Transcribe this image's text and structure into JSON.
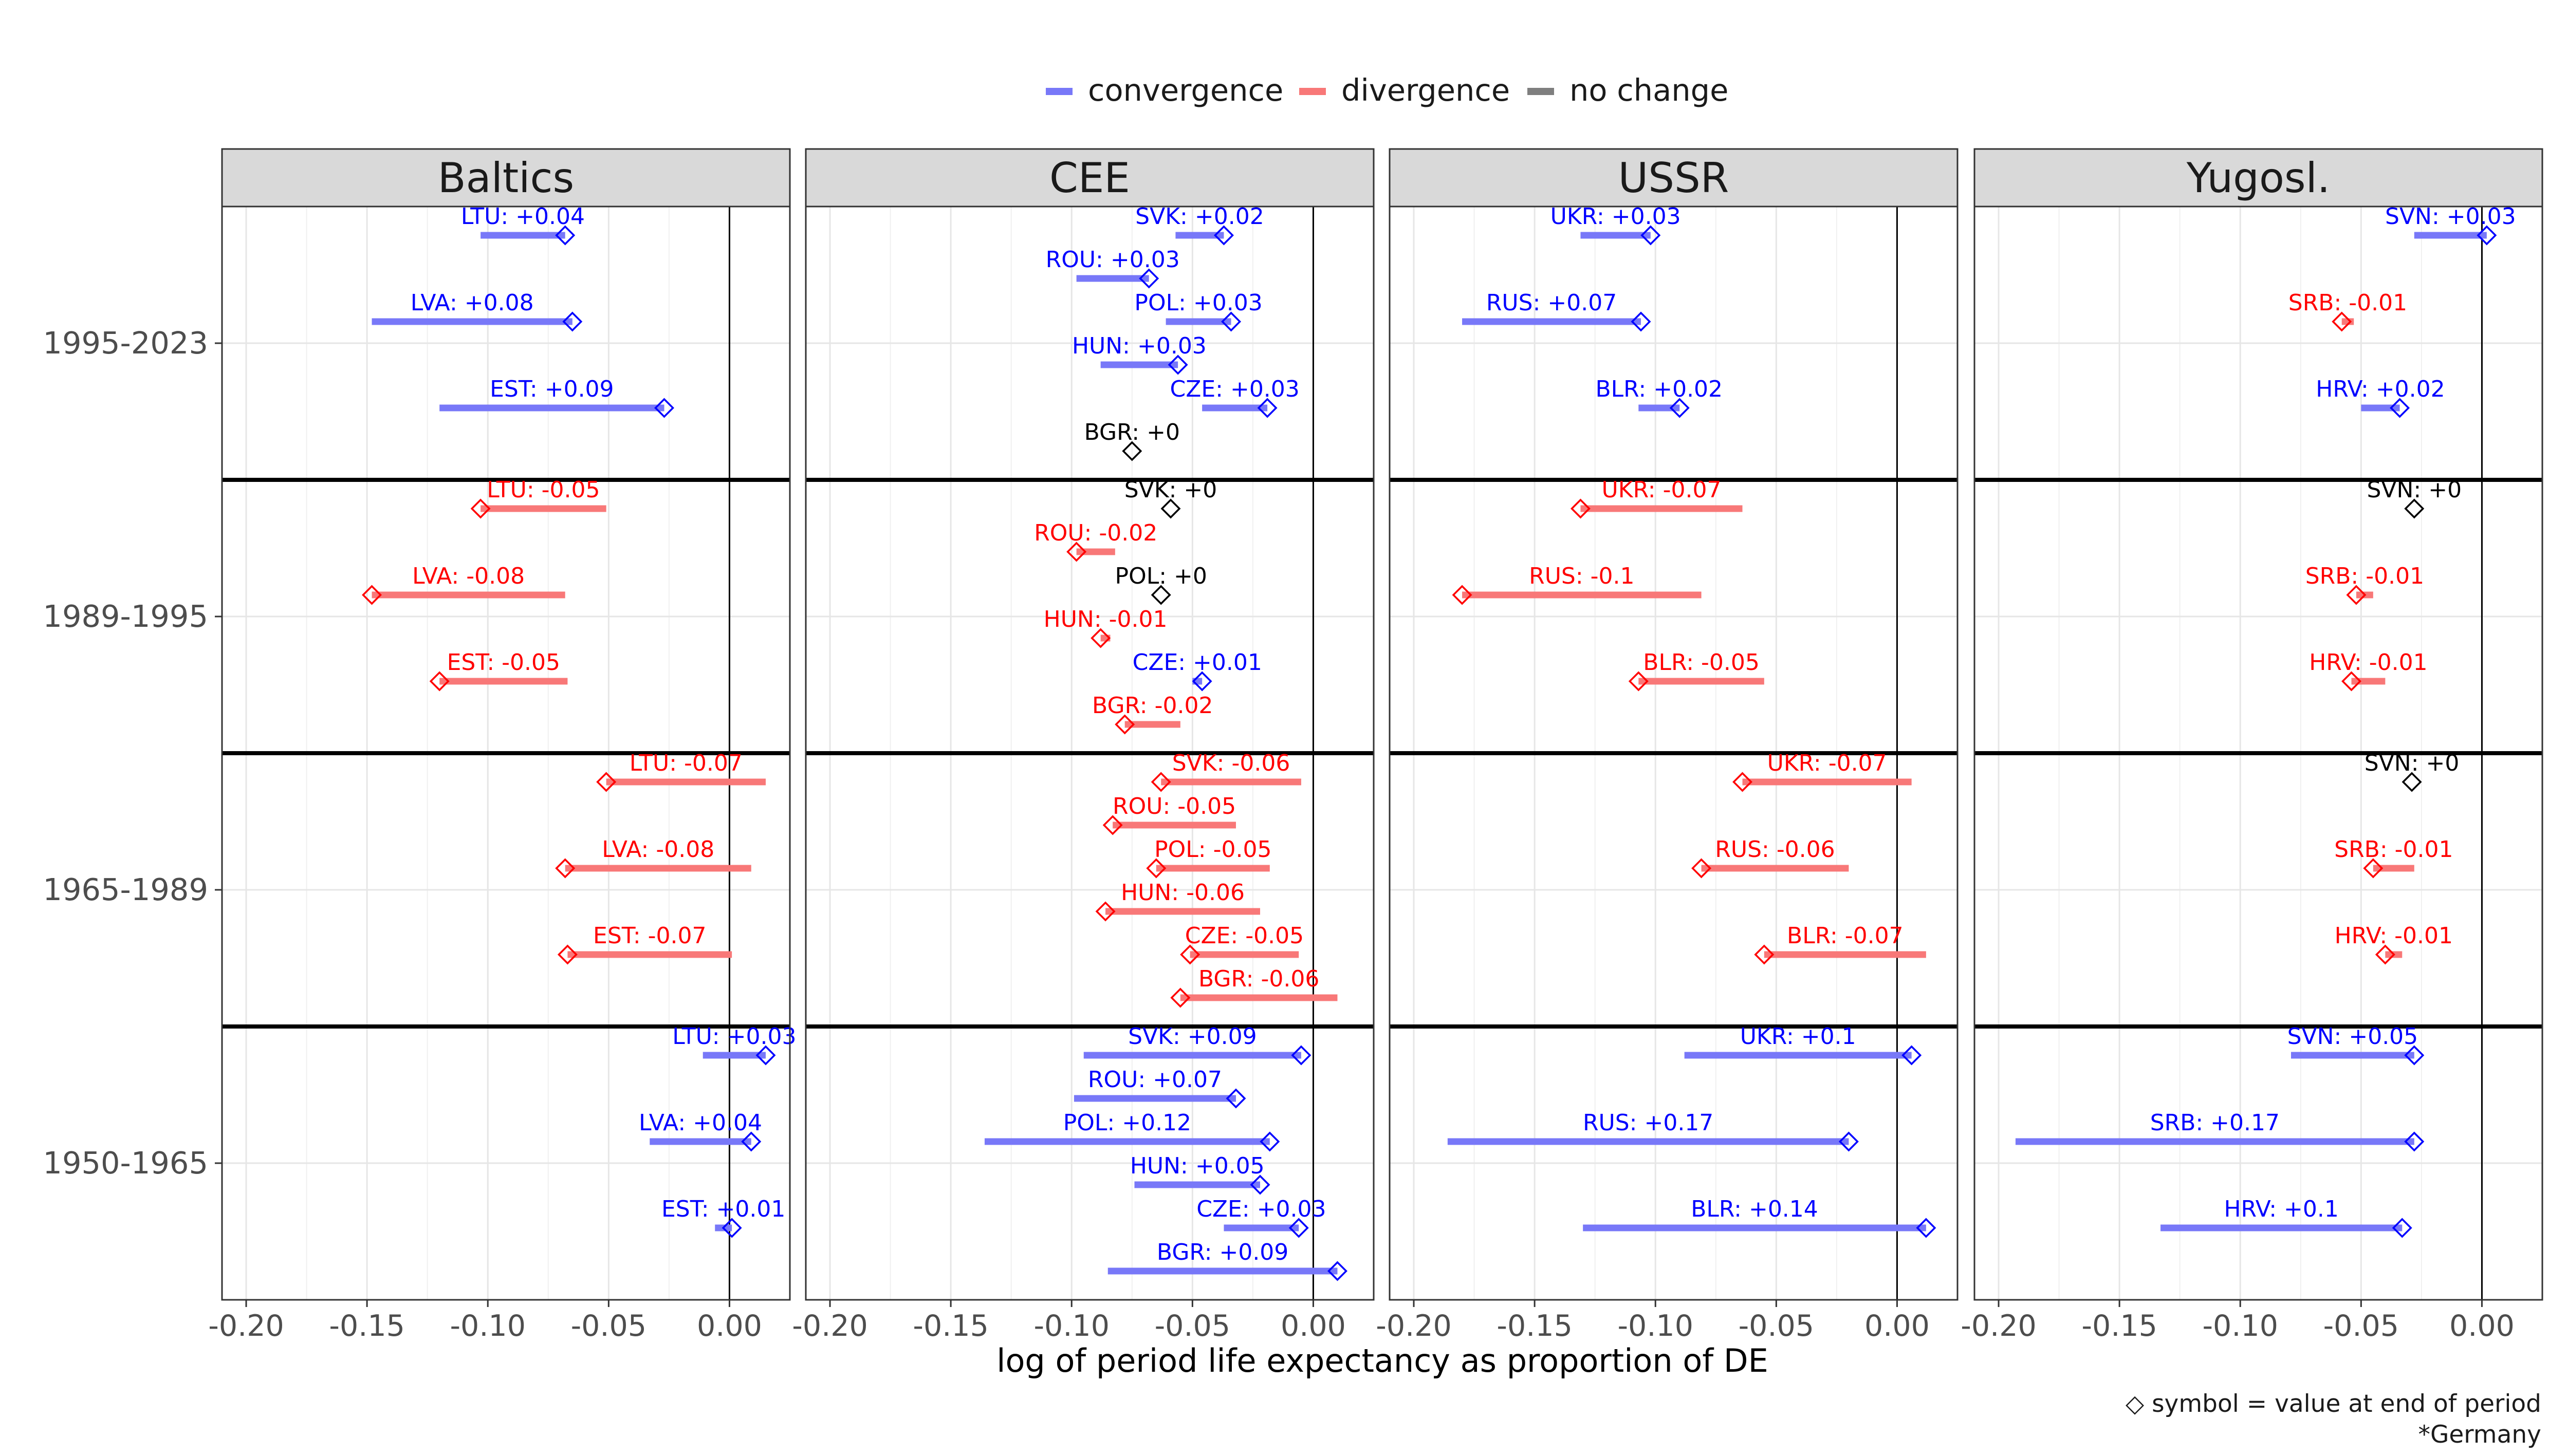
{
  "chart_data": {
    "type": "dumbbell",
    "xlabel": "log of period life expectancy as proportion of DE",
    "xlim": [
      -0.21,
      0.025
    ],
    "x_ticks": [
      -0.2,
      -0.15,
      -0.1,
      -0.05,
      0.0
    ],
    "x_tick_labels": [
      "-0.20",
      "-0.15",
      "-0.10",
      "-0.05",
      "0.00"
    ],
    "periods": [
      "1995-2023",
      "1989-1995",
      "1965-1989",
      "1950-1965"
    ],
    "facets": [
      "Baltics",
      "CEE",
      "USSR",
      "Yugosl."
    ],
    "legend": [
      {
        "key": "convergence",
        "label": "convergence",
        "color": "#7878f8"
      },
      {
        "key": "divergence",
        "label": "divergence",
        "color": "#f87878"
      },
      {
        "key": "no_change",
        "label": "no change",
        "color": "#7f7f7f"
      }
    ],
    "label_colors": {
      "convergence": "#0000ff",
      "divergence": "#ff0000",
      "no_change": "#000000"
    },
    "caption_lines": [
      "◇ symbol = value at end of period",
      "*Germany"
    ],
    "rows": [
      {
        "facet": "Baltics",
        "period": "1995-2023",
        "country": "LTU",
        "slot": 0,
        "start": -0.103,
        "end": -0.068,
        "label": "LTU: +0.04",
        "type": "convergence"
      },
      {
        "facet": "Baltics",
        "period": "1995-2023",
        "country": "LVA",
        "slot": 2,
        "start": -0.148,
        "end": -0.065,
        "label": "LVA: +0.08",
        "type": "convergence"
      },
      {
        "facet": "Baltics",
        "period": "1995-2023",
        "country": "EST",
        "slot": 4,
        "start": -0.12,
        "end": -0.027,
        "label": "EST: +0.09",
        "type": "convergence"
      },
      {
        "facet": "Baltics",
        "period": "1989-1995",
        "country": "LTU",
        "slot": 0,
        "start": -0.051,
        "end": -0.103,
        "label": "LTU: -0.05",
        "type": "divergence"
      },
      {
        "facet": "Baltics",
        "period": "1989-1995",
        "country": "LVA",
        "slot": 2,
        "start": -0.068,
        "end": -0.148,
        "label": "LVA: -0.08",
        "type": "divergence"
      },
      {
        "facet": "Baltics",
        "period": "1989-1995",
        "country": "EST",
        "slot": 4,
        "start": -0.067,
        "end": -0.12,
        "label": "EST: -0.05",
        "type": "divergence"
      },
      {
        "facet": "Baltics",
        "period": "1965-1989",
        "country": "LTU",
        "slot": 0,
        "start": 0.015,
        "end": -0.051,
        "label": "LTU: -0.07",
        "type": "divergence"
      },
      {
        "facet": "Baltics",
        "period": "1965-1989",
        "country": "LVA",
        "slot": 2,
        "start": 0.009,
        "end": -0.068,
        "label": "LVA: -0.08",
        "type": "divergence"
      },
      {
        "facet": "Baltics",
        "period": "1965-1989",
        "country": "EST",
        "slot": 4,
        "start": 0.001,
        "end": -0.067,
        "label": "EST: -0.07",
        "type": "divergence"
      },
      {
        "facet": "Baltics",
        "period": "1950-1965",
        "country": "LTU",
        "slot": 0,
        "start": -0.011,
        "end": 0.015,
        "label": "LTU: +0.03",
        "type": "convergence"
      },
      {
        "facet": "Baltics",
        "period": "1950-1965",
        "country": "LVA",
        "slot": 2,
        "start": -0.033,
        "end": 0.009,
        "label": "LVA: +0.04",
        "type": "convergence"
      },
      {
        "facet": "Baltics",
        "period": "1950-1965",
        "country": "EST",
        "slot": 4,
        "start": -0.006,
        "end": 0.001,
        "label": "EST: +0.01",
        "type": "convergence"
      },
      {
        "facet": "CEE",
        "period": "1995-2023",
        "country": "SVK",
        "slot": 0,
        "start": -0.057,
        "end": -0.037,
        "label": "SVK: +0.02",
        "type": "convergence"
      },
      {
        "facet": "CEE",
        "period": "1995-2023",
        "country": "ROU",
        "slot": 1,
        "start": -0.098,
        "end": -0.068,
        "label": "ROU: +0.03",
        "type": "convergence"
      },
      {
        "facet": "CEE",
        "period": "1995-2023",
        "country": "POL",
        "slot": 2,
        "start": -0.061,
        "end": -0.034,
        "label": "POL: +0.03",
        "type": "convergence"
      },
      {
        "facet": "CEE",
        "period": "1995-2023",
        "country": "HUN",
        "slot": 3,
        "start": -0.088,
        "end": -0.056,
        "label": "HUN: +0.03",
        "type": "convergence"
      },
      {
        "facet": "CEE",
        "period": "1995-2023",
        "country": "CZE",
        "slot": 4,
        "start": -0.046,
        "end": -0.019,
        "label": "CZE: +0.03",
        "type": "convergence"
      },
      {
        "facet": "CEE",
        "period": "1995-2023",
        "country": "BGR",
        "slot": 5,
        "start": -0.075,
        "end": -0.075,
        "label": "BGR: +0",
        "type": "no_change"
      },
      {
        "facet": "CEE",
        "period": "1989-1995",
        "country": "SVK",
        "slot": 0,
        "start": -0.059,
        "end": -0.059,
        "label": "SVK: +0",
        "type": "no_change"
      },
      {
        "facet": "CEE",
        "period": "1989-1995",
        "country": "ROU",
        "slot": 1,
        "start": -0.082,
        "end": -0.098,
        "label": "ROU: -0.02",
        "type": "divergence"
      },
      {
        "facet": "CEE",
        "period": "1989-1995",
        "country": "POL",
        "slot": 2,
        "start": -0.063,
        "end": -0.063,
        "label": "POL: +0",
        "type": "no_change"
      },
      {
        "facet": "CEE",
        "period": "1989-1995",
        "country": "HUN",
        "slot": 3,
        "start": -0.084,
        "end": -0.088,
        "label": "HUN: -0.01",
        "type": "divergence"
      },
      {
        "facet": "CEE",
        "period": "1989-1995",
        "country": "CZE",
        "slot": 4,
        "start": -0.05,
        "end": -0.046,
        "label": "CZE: +0.01",
        "type": "convergence"
      },
      {
        "facet": "CEE",
        "period": "1989-1995",
        "country": "BGR",
        "slot": 5,
        "start": -0.055,
        "end": -0.078,
        "label": "BGR: -0.02",
        "type": "divergence"
      },
      {
        "facet": "CEE",
        "period": "1965-1989",
        "country": "SVK",
        "slot": 0,
        "start": -0.005,
        "end": -0.063,
        "label": "SVK: -0.06",
        "type": "divergence"
      },
      {
        "facet": "CEE",
        "period": "1965-1989",
        "country": "ROU",
        "slot": 1,
        "start": -0.032,
        "end": -0.083,
        "label": "ROU: -0.05",
        "type": "divergence"
      },
      {
        "facet": "CEE",
        "period": "1965-1989",
        "country": "POL",
        "slot": 2,
        "start": -0.018,
        "end": -0.065,
        "label": "POL: -0.05",
        "type": "divergence"
      },
      {
        "facet": "CEE",
        "period": "1965-1989",
        "country": "HUN",
        "slot": 3,
        "start": -0.022,
        "end": -0.086,
        "label": "HUN: -0.06",
        "type": "divergence"
      },
      {
        "facet": "CEE",
        "period": "1965-1989",
        "country": "CZE",
        "slot": 4,
        "start": -0.006,
        "end": -0.051,
        "label": "CZE: -0.05",
        "type": "divergence"
      },
      {
        "facet": "CEE",
        "period": "1965-1989",
        "country": "BGR",
        "slot": 5,
        "start": 0.01,
        "end": -0.055,
        "label": "BGR: -0.06",
        "type": "divergence"
      },
      {
        "facet": "CEE",
        "period": "1950-1965",
        "country": "SVK",
        "slot": 0,
        "start": -0.095,
        "end": -0.005,
        "label": "SVK: +0.09",
        "type": "convergence"
      },
      {
        "facet": "CEE",
        "period": "1950-1965",
        "country": "ROU",
        "slot": 1,
        "start": -0.099,
        "end": -0.032,
        "label": "ROU: +0.07",
        "type": "convergence"
      },
      {
        "facet": "CEE",
        "period": "1950-1965",
        "country": "POL",
        "slot": 2,
        "start": -0.136,
        "end": -0.018,
        "label": "POL: +0.12",
        "type": "convergence"
      },
      {
        "facet": "CEE",
        "period": "1950-1965",
        "country": "HUN",
        "slot": 3,
        "start": -0.074,
        "end": -0.022,
        "label": "HUN: +0.05",
        "type": "convergence"
      },
      {
        "facet": "CEE",
        "period": "1950-1965",
        "country": "CZE",
        "slot": 4,
        "start": -0.037,
        "end": -0.006,
        "label": "CZE: +0.03",
        "type": "convergence"
      },
      {
        "facet": "CEE",
        "period": "1950-1965",
        "country": "BGR",
        "slot": 5,
        "start": -0.085,
        "end": 0.01,
        "label": "BGR: +0.09",
        "type": "convergence"
      },
      {
        "facet": "USSR",
        "period": "1995-2023",
        "country": "UKR",
        "slot": 0,
        "start": -0.131,
        "end": -0.102,
        "label": "UKR: +0.03",
        "type": "convergence"
      },
      {
        "facet": "USSR",
        "period": "1995-2023",
        "country": "RUS",
        "slot": 2,
        "start": -0.18,
        "end": -0.106,
        "label": "RUS: +0.07",
        "type": "convergence"
      },
      {
        "facet": "USSR",
        "period": "1995-2023",
        "country": "BLR",
        "slot": 4,
        "start": -0.107,
        "end": -0.09,
        "label": "BLR: +0.02",
        "type": "convergence"
      },
      {
        "facet": "USSR",
        "period": "1989-1995",
        "country": "UKR",
        "slot": 0,
        "start": -0.064,
        "end": -0.131,
        "label": "UKR: -0.07",
        "type": "divergence"
      },
      {
        "facet": "USSR",
        "period": "1989-1995",
        "country": "RUS",
        "slot": 2,
        "start": -0.081,
        "end": -0.18,
        "label": "RUS: -0.1",
        "type": "divergence"
      },
      {
        "facet": "USSR",
        "period": "1989-1995",
        "country": "BLR",
        "slot": 4,
        "start": -0.055,
        "end": -0.107,
        "label": "BLR: -0.05",
        "type": "divergence"
      },
      {
        "facet": "USSR",
        "period": "1965-1989",
        "country": "UKR",
        "slot": 0,
        "start": 0.006,
        "end": -0.064,
        "label": "UKR: -0.07",
        "type": "divergence"
      },
      {
        "facet": "USSR",
        "period": "1965-1989",
        "country": "RUS",
        "slot": 2,
        "start": -0.02,
        "end": -0.081,
        "label": "RUS: -0.06",
        "type": "divergence"
      },
      {
        "facet": "USSR",
        "period": "1965-1989",
        "country": "BLR",
        "slot": 4,
        "start": 0.012,
        "end": -0.055,
        "label": "BLR: -0.07",
        "type": "divergence"
      },
      {
        "facet": "USSR",
        "period": "1950-1965",
        "country": "UKR",
        "slot": 0,
        "start": -0.088,
        "end": 0.006,
        "label": "UKR: +0.1",
        "type": "convergence"
      },
      {
        "facet": "USSR",
        "period": "1950-1965",
        "country": "RUS",
        "slot": 2,
        "start": -0.186,
        "end": -0.02,
        "label": "RUS: +0.17",
        "type": "convergence"
      },
      {
        "facet": "USSR",
        "period": "1950-1965",
        "country": "BLR",
        "slot": 4,
        "start": -0.13,
        "end": 0.012,
        "label": "BLR: +0.14",
        "type": "convergence"
      },
      {
        "facet": "Yugosl.",
        "period": "1995-2023",
        "country": "SVN",
        "slot": 0,
        "start": -0.028,
        "end": 0.002,
        "label": "SVN: +0.03",
        "type": "convergence"
      },
      {
        "facet": "Yugosl.",
        "period": "1995-2023",
        "country": "SRB",
        "slot": 2,
        "start": -0.053,
        "end": -0.058,
        "label": "SRB: -0.01",
        "type": "divergence"
      },
      {
        "facet": "Yugosl.",
        "period": "1995-2023",
        "country": "HRV",
        "slot": 4,
        "start": -0.05,
        "end": -0.034,
        "label": "HRV: +0.02",
        "type": "convergence"
      },
      {
        "facet": "Yugosl.",
        "period": "1989-1995",
        "country": "SVN",
        "slot": 0,
        "start": -0.028,
        "end": -0.028,
        "label": "SVN: +0",
        "type": "no_change"
      },
      {
        "facet": "Yugosl.",
        "period": "1989-1995",
        "country": "SRB",
        "slot": 2,
        "start": -0.045,
        "end": -0.052,
        "label": "SRB: -0.01",
        "type": "divergence"
      },
      {
        "facet": "Yugosl.",
        "period": "1989-1995",
        "country": "HRV",
        "slot": 4,
        "start": -0.04,
        "end": -0.054,
        "label": "HRV: -0.01",
        "type": "divergence"
      },
      {
        "facet": "Yugosl.",
        "period": "1965-1989",
        "country": "SVN",
        "slot": 0,
        "start": -0.029,
        "end": -0.029,
        "label": "SVN: +0",
        "type": "no_change"
      },
      {
        "facet": "Yugosl.",
        "period": "1965-1989",
        "country": "SRB",
        "slot": 2,
        "start": -0.028,
        "end": -0.045,
        "label": "SRB: -0.01",
        "type": "divergence"
      },
      {
        "facet": "Yugosl.",
        "period": "1965-1989",
        "country": "HRV",
        "slot": 4,
        "start": -0.033,
        "end": -0.04,
        "label": "HRV: -0.01",
        "type": "divergence"
      },
      {
        "facet": "Yugosl.",
        "period": "1950-1965",
        "country": "SVN",
        "slot": 0,
        "start": -0.079,
        "end": -0.028,
        "label": "SVN: +0.05",
        "type": "convergence"
      },
      {
        "facet": "Yugosl.",
        "period": "1950-1965",
        "country": "SRB",
        "slot": 2,
        "start": -0.193,
        "end": -0.028,
        "label": "SRB: +0.17",
        "type": "convergence"
      },
      {
        "facet": "Yugosl.",
        "period": "1950-1965",
        "country": "HRV",
        "slot": 4,
        "start": -0.133,
        "end": -0.033,
        "label": "HRV: +0.1",
        "type": "convergence"
      }
    ]
  }
}
